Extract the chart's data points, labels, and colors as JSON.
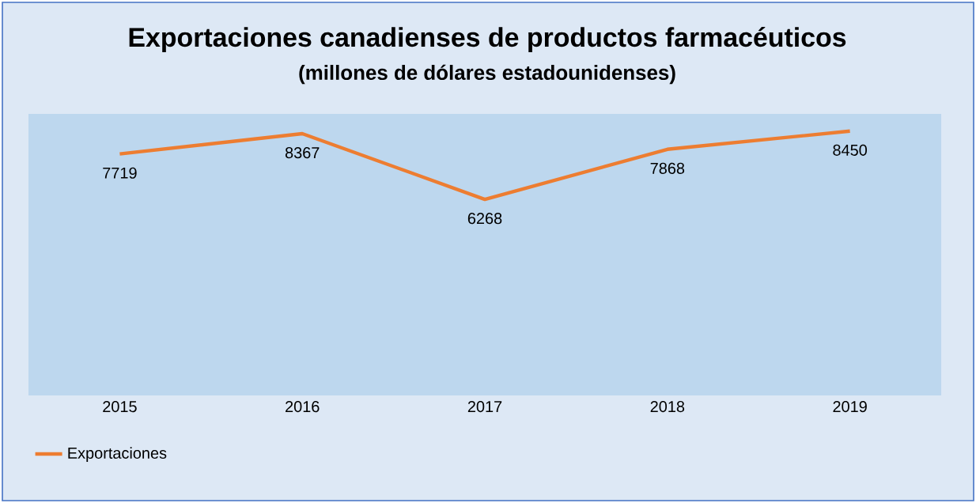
{
  "chart_data": {
    "type": "line",
    "title": "Exportaciones canadienses de productos farmacéuticos",
    "subtitle": "(millones de dólares estadounidenses)",
    "categories": [
      "2015",
      "2016",
      "2017",
      "2018",
      "2019"
    ],
    "series": [
      {
        "name": "Exportaciones",
        "color": "#ed7d31",
        "values": [
          7719,
          8367,
          6268,
          7868,
          8450
        ]
      }
    ],
    "ylim": [
      0,
      9000
    ],
    "tick_labels": "x",
    "data_labels": true,
    "legend": "bottom left"
  }
}
